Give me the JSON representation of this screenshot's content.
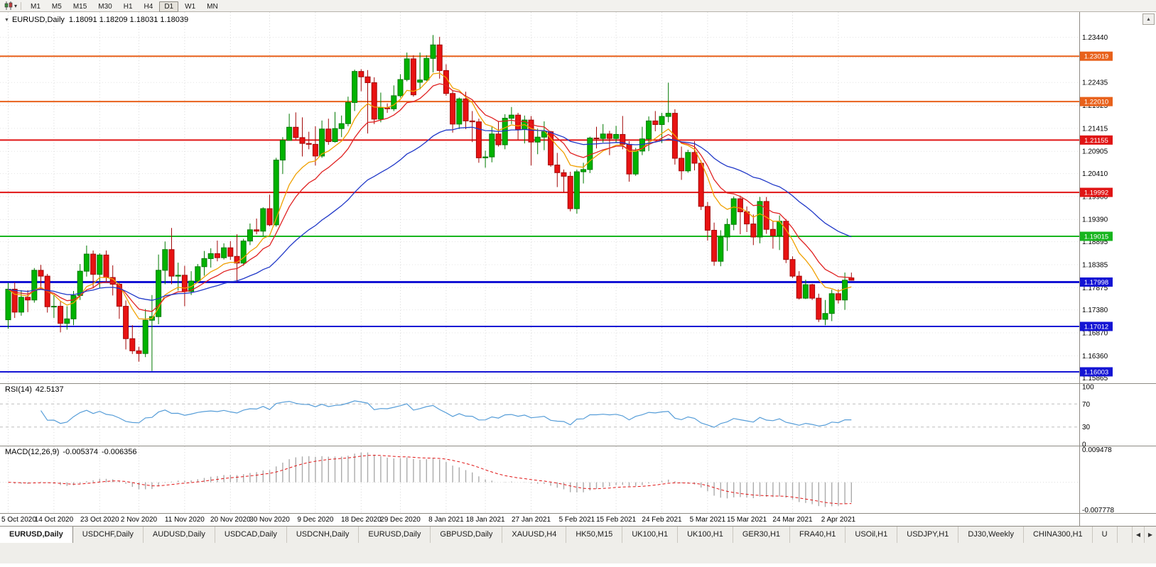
{
  "icons": {
    "title_marker": "▼",
    "chart_type_caret": "▾",
    "scroll_up": "▲",
    "tabs_scroll_left": "◀",
    "tabs_scroll_right": "▶"
  },
  "toolbar": {
    "timeframes": [
      {
        "label": "M1",
        "active": false
      },
      {
        "label": "M5",
        "active": false
      },
      {
        "label": "M15",
        "active": false
      },
      {
        "label": "M30",
        "active": false
      },
      {
        "label": "H1",
        "active": false
      },
      {
        "label": "H4",
        "active": false
      },
      {
        "label": "D1",
        "active": true
      },
      {
        "label": "W1",
        "active": false
      },
      {
        "label": "MN",
        "active": false
      }
    ]
  },
  "chart": {
    "symbol": "EURUSD,Daily",
    "ohlc": "1.18091 1.18209 1.18031 1.18039"
  },
  "price_axis": {
    "ticks": [
      1.2344,
      1.2299,
      1.22435,
      1.21925,
      1.21415,
      1.20905,
      1.2041,
      1.199,
      1.1939,
      1.18895,
      1.18385,
      1.17875,
      1.1738,
      1.1687,
      1.1636,
      1.15865
    ]
  },
  "hlines": [
    {
      "price": 1.23019,
      "color": "#E8611B",
      "width": 2
    },
    {
      "price": 1.2201,
      "color": "#E8611B",
      "width": 2
    },
    {
      "price": 1.21155,
      "color": "#E01414",
      "width": 2
    },
    {
      "price": 1.19992,
      "color": "#E01414",
      "width": 2
    },
    {
      "price": 1.19015,
      "color": "#17B51E",
      "width": 2
    },
    {
      "price": 1.17998,
      "color": "#1414D4",
      "width": 3
    },
    {
      "price": 1.17012,
      "color": "#1414D4",
      "width": 2
    },
    {
      "price": 1.16003,
      "color": "#1414D4",
      "width": 2
    }
  ],
  "rsi": {
    "name": "RSI(14)",
    "value": "42.5137",
    "levels": [
      100,
      70,
      30,
      0
    ],
    "upper": 70,
    "lower": 30,
    "color": "#569DD8"
  },
  "macd": {
    "name": "MACD(12,26,9)",
    "value_main": "-0.005374",
    "value_signal": "-0.006356",
    "axis_top": "0.009478",
    "axis_bottom": "-0.007778",
    "hist_color": "#ABABAB",
    "signal_color": "#E01414"
  },
  "date_axis": {
    "labels": [
      {
        "text": "5 Oct 2020",
        "i": 0
      },
      {
        "text": "14 Oct 2020",
        "i": 7
      },
      {
        "text": "23 Oct 2020",
        "i": 14
      },
      {
        "text": "2 Nov 2020",
        "i": 20
      },
      {
        "text": "11 Nov 2020",
        "i": 27
      },
      {
        "text": "20 Nov 2020",
        "i": 34
      },
      {
        "text": "30 Nov 2020",
        "i": 40
      },
      {
        "text": "9 Dec 2020",
        "i": 47
      },
      {
        "text": "18 Dec 2020",
        "i": 54
      },
      {
        "text": "29 Dec 2020",
        "i": 60
      },
      {
        "text": "8 Jan 2021",
        "i": 67
      },
      {
        "text": "18 Jan 2021",
        "i": 73
      },
      {
        "text": "27 Jan 2021",
        "i": 80
      },
      {
        "text": "5 Feb 2021",
        "i": 87
      },
      {
        "text": "15 Feb 2021",
        "i": 93
      },
      {
        "text": "24 Feb 2021",
        "i": 100
      },
      {
        "text": "5 Mar 2021",
        "i": 107
      },
      {
        "text": "15 Mar 2021",
        "i": 113
      },
      {
        "text": "24 Mar 2021",
        "i": 120
      },
      {
        "text": "2 Apr 2021",
        "i": 127
      }
    ]
  },
  "tabs": {
    "items": [
      {
        "label": "EURUSD,Daily",
        "active": true
      },
      {
        "label": "USDCHF,Daily",
        "active": false
      },
      {
        "label": "AUDUSD,Daily",
        "active": false
      },
      {
        "label": "USDCAD,Daily",
        "active": false
      },
      {
        "label": "USDCNH,Daily",
        "active": false
      },
      {
        "label": "EURUSD,Daily",
        "active": false
      },
      {
        "label": "GBPUSD,Daily",
        "active": false
      },
      {
        "label": "XAUUSD,H4",
        "active": false
      },
      {
        "label": "HK50,M15",
        "active": false
      },
      {
        "label": "UK100,H1",
        "active": false
      },
      {
        "label": "UK100,H1",
        "active": false
      },
      {
        "label": "GER30,H1",
        "active": false
      },
      {
        "label": "FRA40,H1",
        "active": false
      },
      {
        "label": "USOil,H1",
        "active": false
      },
      {
        "label": "USDJPY,H1",
        "active": false
      },
      {
        "label": "DJ30,Weekly",
        "active": false
      },
      {
        "label": "CHINA300,H1",
        "active": false
      },
      {
        "label": "U",
        "active": false
      }
    ]
  },
  "chart_data": {
    "type": "candlestick",
    "symbol": "EURUSD",
    "timeframe": "Daily",
    "price_range": [
      1.1575,
      1.24
    ],
    "up_color": "#00B300",
    "up_border": "#007A00",
    "down_color": "#E81212",
    "down_border": "#A30808",
    "moving_averages": [
      {
        "type": "ema",
        "period": 8,
        "color": "#F0A000"
      },
      {
        "type": "ema",
        "period": 13,
        "color": "#E02222"
      },
      {
        "type": "ema",
        "period": 34,
        "color": "#2038C8"
      }
    ],
    "rsi_period": 14,
    "macd_params": [
      12,
      26,
      9
    ],
    "candles": [
      [
        1.1716,
        1.1798,
        1.1696,
        1.1784
      ],
      [
        1.1784,
        1.1799,
        1.172,
        1.1733
      ],
      [
        1.1733,
        1.1782,
        1.1725,
        1.1766
      ],
      [
        1.1766,
        1.1782,
        1.1733,
        1.176
      ],
      [
        1.176,
        1.1831,
        1.1754,
        1.1826
      ],
      [
        1.1826,
        1.1838,
        1.1786,
        1.1813
      ],
      [
        1.1813,
        1.1818,
        1.1732,
        1.1745
      ],
      [
        1.1745,
        1.1771,
        1.172,
        1.1746
      ],
      [
        1.1746,
        1.1758,
        1.1688,
        1.1708
      ],
      [
        1.1708,
        1.1746,
        1.1694,
        1.1718
      ],
      [
        1.1718,
        1.178,
        1.1704,
        1.177
      ],
      [
        1.177,
        1.184,
        1.176,
        1.1824
      ],
      [
        1.1824,
        1.1881,
        1.1812,
        1.1862
      ],
      [
        1.1862,
        1.187,
        1.1786,
        1.1817
      ],
      [
        1.1817,
        1.1864,
        1.1786,
        1.186
      ],
      [
        1.186,
        1.187,
        1.18,
        1.181
      ],
      [
        1.181,
        1.1837,
        1.177,
        1.1795
      ],
      [
        1.1795,
        1.18,
        1.1718,
        1.1746
      ],
      [
        1.1746,
        1.1759,
        1.165,
        1.1674
      ],
      [
        1.1674,
        1.1704,
        1.164,
        1.1647
      ],
      [
        1.1647,
        1.1656,
        1.1623,
        1.1641
      ],
      [
        1.1641,
        1.174,
        1.1633,
        1.1715
      ],
      [
        1.1715,
        1.1771,
        1.1602,
        1.1723
      ],
      [
        1.1723,
        1.1861,
        1.1706,
        1.1826
      ],
      [
        1.1826,
        1.189,
        1.1795,
        1.1872
      ],
      [
        1.1872,
        1.192,
        1.1795,
        1.1813
      ],
      [
        1.1813,
        1.1843,
        1.1781,
        1.1815
      ],
      [
        1.1815,
        1.1836,
        1.1746,
        1.1779
      ],
      [
        1.1779,
        1.1824,
        1.1771,
        1.1802
      ],
      [
        1.1802,
        1.184,
        1.1799,
        1.1834
      ],
      [
        1.1834,
        1.1869,
        1.1814,
        1.1852
      ],
      [
        1.1852,
        1.1875,
        1.1832,
        1.1863
      ],
      [
        1.1863,
        1.1892,
        1.1846,
        1.1854
      ],
      [
        1.1854,
        1.1886,
        1.185,
        1.1876
      ],
      [
        1.1876,
        1.1891,
        1.1849,
        1.1857
      ],
      [
        1.1857,
        1.1906,
        1.18,
        1.1842
      ],
      [
        1.1842,
        1.1896,
        1.1836,
        1.1891
      ],
      [
        1.1891,
        1.193,
        1.1882,
        1.1916
      ],
      [
        1.1916,
        1.1941,
        1.1906,
        1.1913
      ],
      [
        1.1913,
        1.1966,
        1.1902,
        1.1963
      ],
      [
        1.1963,
        1.1994,
        1.1924,
        1.1927
      ],
      [
        1.1927,
        1.2076,
        1.1923,
        1.2071
      ],
      [
        1.2071,
        1.2122,
        1.204,
        1.2115
      ],
      [
        1.2115,
        1.2174,
        1.2115,
        1.2144
      ],
      [
        1.2144,
        1.2177,
        1.2116,
        1.2121
      ],
      [
        1.2121,
        1.2166,
        1.2079,
        1.2108
      ],
      [
        1.2108,
        1.2134,
        1.2095,
        1.2106
      ],
      [
        1.2106,
        1.2146,
        1.2059,
        1.208
      ],
      [
        1.208,
        1.2159,
        1.2076,
        1.214
      ],
      [
        1.214,
        1.2163,
        1.2105,
        1.2112
      ],
      [
        1.2112,
        1.2178,
        1.211,
        1.2141
      ],
      [
        1.2141,
        1.217,
        1.2122,
        1.2152
      ],
      [
        1.2152,
        1.2212,
        1.2146,
        1.2199
      ],
      [
        1.2199,
        1.2272,
        1.218,
        1.2268
      ],
      [
        1.2268,
        1.2273,
        1.2224,
        1.2256
      ],
      [
        1.2256,
        1.2271,
        1.213,
        1.2243
      ],
      [
        1.2243,
        1.2255,
        1.2151,
        1.2162
      ],
      [
        1.2162,
        1.2221,
        1.2155,
        1.2187
      ],
      [
        1.2187,
        1.2197,
        1.2176,
        1.2185
      ],
      [
        1.2185,
        1.2237,
        1.218,
        1.2214
      ],
      [
        1.2214,
        1.2262,
        1.221,
        1.225
      ],
      [
        1.225,
        1.231,
        1.2246,
        1.2296
      ],
      [
        1.2296,
        1.2304,
        1.2212,
        1.2216
      ],
      [
        1.2244,
        1.231,
        1.2228,
        1.2249
      ],
      [
        1.2249,
        1.2304,
        1.2247,
        1.2297
      ],
      [
        1.2297,
        1.2349,
        1.2266,
        1.2327
      ],
      [
        1.2327,
        1.2345,
        1.2252,
        1.227
      ],
      [
        1.227,
        1.2284,
        1.2214,
        1.2219
      ],
      [
        1.2219,
        1.2225,
        1.2132,
        1.2151
      ],
      [
        1.2151,
        1.221,
        1.214,
        1.2207
      ],
      [
        1.2207,
        1.2223,
        1.214,
        1.2158
      ],
      [
        1.2158,
        1.218,
        1.2111,
        1.2156
      ],
      [
        1.2156,
        1.2163,
        1.2065,
        1.2076
      ],
      [
        1.2076,
        1.2092,
        1.2054,
        1.2078
      ],
      [
        1.2078,
        1.2145,
        1.2066,
        1.2129
      ],
      [
        1.2129,
        1.2158,
        1.2101,
        1.2105
      ],
      [
        1.2105,
        1.2173,
        1.2095,
        1.2164
      ],
      [
        1.2164,
        1.2189,
        1.2151,
        1.2171
      ],
      [
        1.2171,
        1.2176,
        1.2116,
        1.2139
      ],
      [
        1.2139,
        1.217,
        1.2108,
        1.216
      ],
      [
        1.216,
        1.2169,
        1.2059,
        1.2111
      ],
      [
        1.2111,
        1.2141,
        1.2084,
        1.2122
      ],
      [
        1.2122,
        1.2157,
        1.2093,
        1.2134
      ],
      [
        1.2134,
        1.2136,
        1.2056,
        1.206
      ],
      [
        1.206,
        1.2087,
        1.2011,
        1.2043
      ],
      [
        1.2043,
        1.205,
        1.1999,
        1.2035
      ],
      [
        1.2035,
        1.2045,
        1.1957,
        1.1963
      ],
      [
        1.1963,
        1.205,
        1.1952,
        1.2045
      ],
      [
        1.2045,
        1.2065,
        1.2019,
        1.205
      ],
      [
        1.205,
        1.2123,
        1.2042,
        1.212
      ],
      [
        1.212,
        1.2145,
        1.2097,
        1.2119
      ],
      [
        1.2119,
        1.2151,
        1.211,
        1.2129
      ],
      [
        1.2129,
        1.2136,
        1.2082,
        1.2119
      ],
      [
        1.2119,
        1.2147,
        1.2109,
        1.2128
      ],
      [
        1.2128,
        1.2169,
        1.2095,
        1.2106
      ],
      [
        1.2106,
        1.2113,
        1.2023,
        1.204
      ],
      [
        1.204,
        1.2098,
        1.2036,
        1.2091
      ],
      [
        1.2091,
        1.2145,
        1.2082,
        1.2118
      ],
      [
        1.2118,
        1.2168,
        1.2091,
        1.2158
      ],
      [
        1.2158,
        1.218,
        1.2135,
        1.215
      ],
      [
        1.215,
        1.2176,
        1.2109,
        1.2168
      ],
      [
        1.2168,
        1.2243,
        1.2155,
        1.2175
      ],
      [
        1.2175,
        1.2184,
        1.2061,
        1.2075
      ],
      [
        1.2075,
        1.2101,
        1.2027,
        1.2047
      ],
      [
        1.2047,
        1.2094,
        1.2043,
        1.2088
      ],
      [
        1.2088,
        1.2113,
        1.2048,
        1.2064
      ],
      [
        1.2064,
        1.207,
        1.196,
        1.1968
      ],
      [
        1.1968,
        1.1978,
        1.1892,
        1.1915
      ],
      [
        1.1915,
        1.1932,
        1.1836,
        1.1846
      ],
      [
        1.1846,
        1.1915,
        1.1835,
        1.19
      ],
      [
        1.19,
        1.1941,
        1.1869,
        1.1928
      ],
      [
        1.1928,
        1.199,
        1.1915,
        1.1985
      ],
      [
        1.1985,
        1.1992,
        1.1906,
        1.1956
      ],
      [
        1.1956,
        1.1968,
        1.1911,
        1.1929
      ],
      [
        1.1929,
        1.195,
        1.1882,
        1.19
      ],
      [
        1.19,
        1.1989,
        1.1886,
        1.1979
      ],
      [
        1.1979,
        1.1989,
        1.1907,
        1.1917
      ],
      [
        1.1917,
        1.1936,
        1.1874,
        1.1903
      ],
      [
        1.1903,
        1.1948,
        1.1871,
        1.1935
      ],
      [
        1.1935,
        1.194,
        1.1842,
        1.185
      ],
      [
        1.185,
        1.1857,
        1.1809,
        1.1813
      ],
      [
        1.1813,
        1.1824,
        1.1761,
        1.1764
      ],
      [
        1.1764,
        1.1805,
        1.1762,
        1.1794
      ],
      [
        1.1794,
        1.1796,
        1.176,
        1.1764
      ],
      [
        1.1764,
        1.1774,
        1.1711,
        1.1717
      ],
      [
        1.1717,
        1.176,
        1.1704,
        1.173
      ],
      [
        1.173,
        1.1783,
        1.1713,
        1.1774
      ],
      [
        1.1774,
        1.1784,
        1.1752,
        1.176
      ],
      [
        1.176,
        1.1821,
        1.1738,
        1.1804
      ],
      [
        1.18091,
        1.18209,
        1.18031,
        1.18039
      ]
    ]
  }
}
